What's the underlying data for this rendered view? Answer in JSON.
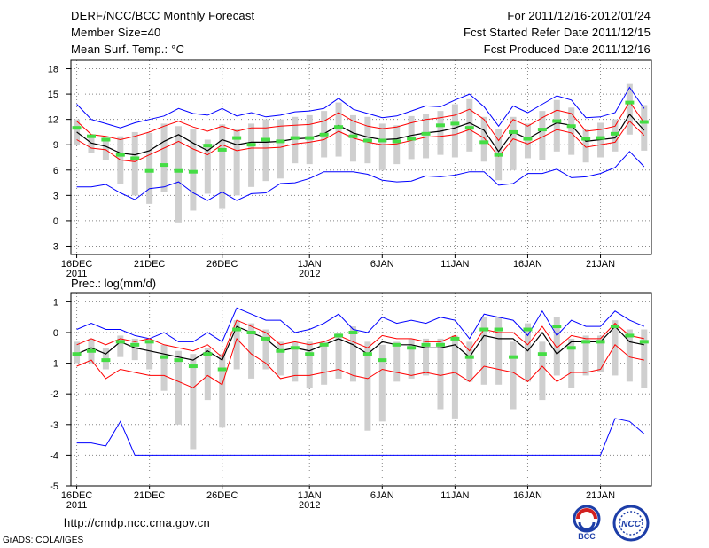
{
  "header": {
    "title": "DERF/NCC/BCC Monthly Forecast",
    "member_size": "Member Size=40",
    "variable1": "Mean Surf. Temp.: °C",
    "period": "For 2011/12/16-2012/01/24",
    "started": "Fcst Started Refer Date 2011/12/15",
    "produced": "Fcst Produced Date 2011/12/16"
  },
  "footer": {
    "url": "http://cmdp.ncc.cma.gov.cn",
    "grads": "GrADS: COLA/IGES",
    "logo1_label": "BCC",
    "logo2_label": "NCC"
  },
  "colors": {
    "max": "#0000ff",
    "min": "#0000ff",
    "upper": "#ff0000",
    "lower": "#ff0000",
    "mean": "#000000",
    "median": "#44dd44",
    "box": "#cfcfcf",
    "grid": "#888888"
  },
  "chart_data": [
    {
      "type": "line",
      "title": "Mean Surf. Temp.: °C",
      "ylim": [
        -4,
        19
      ],
      "yticks": [
        -3,
        0,
        3,
        6,
        9,
        12,
        15,
        18
      ],
      "ytick_labels": [
        "-3",
        "0",
        "3",
        "6",
        "9",
        "12",
        "15",
        "18"
      ],
      "xticks": [
        1,
        6,
        11,
        17,
        22,
        27,
        32,
        37
      ],
      "xtick_labels": [
        "16DEC",
        "21DEC",
        "26DEC",
        "1JAN",
        "6JAN",
        "11JAN",
        "16JAN",
        "21JAN"
      ],
      "xtick_sublabels": {
        "1": "2011",
        "17": "2012"
      },
      "xlim": [
        0.6,
        40.5
      ],
      "days": 40,
      "series": [
        {
          "name": "max",
          "values": [
            13.8,
            12.0,
            11.5,
            11.0,
            11.6,
            12.0,
            12.4,
            13.3,
            12.7,
            12.5,
            13.3,
            12.4,
            12.8,
            12.3,
            12.5,
            12.9,
            13.0,
            13.3,
            14.5,
            13.2,
            12.7,
            12.2,
            12.4,
            13.0,
            13.6,
            13.5,
            14.3,
            15.0,
            13.5,
            11.2,
            13.6,
            12.8,
            13.8,
            14.8,
            14.3,
            12.2,
            12.3,
            12.8,
            15.8,
            13.3
          ]
        },
        {
          "name": "upper",
          "values": [
            11.8,
            10.2,
            10.0,
            9.6,
            10.0,
            10.5,
            11.2,
            11.8,
            11.1,
            10.6,
            11.2,
            10.6,
            11.0,
            11.0,
            11.2,
            11.3,
            11.4,
            11.8,
            12.8,
            11.8,
            11.2,
            10.9,
            11.1,
            11.6,
            12.0,
            12.2,
            12.5,
            13.2,
            12.0,
            9.5,
            12.0,
            11.2,
            12.2,
            13.1,
            12.7,
            10.6,
            10.8,
            11.2,
            14.1,
            11.6
          ]
        },
        {
          "name": "mean",
          "values": [
            10.5,
            9.2,
            8.8,
            8.0,
            7.8,
            8.3,
            9.4,
            10.2,
            9.2,
            8.3,
            9.6,
            9.0,
            9.3,
            9.3,
            9.4,
            9.7,
            9.8,
            10.3,
            11.3,
            10.4,
            9.9,
            9.6,
            9.7,
            10.1,
            10.4,
            10.6,
            11.0,
            11.6,
            10.7,
            8.2,
            10.5,
            9.7,
            10.7,
            11.6,
            11.3,
            9.4,
            9.6,
            9.8,
            12.6,
            10.7
          ]
        },
        {
          "name": "lower",
          "values": [
            9.6,
            8.6,
            8.4,
            7.2,
            7.0,
            7.8,
            8.6,
            9.4,
            8.5,
            7.8,
            9.0,
            8.3,
            8.6,
            8.6,
            8.7,
            9.1,
            9.3,
            9.6,
            10.6,
            9.8,
            9.3,
            9.0,
            9.1,
            9.5,
            9.9,
            10.0,
            10.2,
            10.8,
            9.8,
            7.6,
            9.7,
            9.1,
            9.9,
            10.8,
            10.4,
            8.7,
            9.0,
            9.3,
            11.8,
            10.1
          ]
        },
        {
          "name": "min",
          "values": [
            4.0,
            4.0,
            4.3,
            3.3,
            2.5,
            3.8,
            4.0,
            4.6,
            3.3,
            2.4,
            3.4,
            2.4,
            3.2,
            3.3,
            4.4,
            4.5,
            5.0,
            5.8,
            5.8,
            5.8,
            5.5,
            4.8,
            4.6,
            4.7,
            5.3,
            5.2,
            5.4,
            5.8,
            5.8,
            4.2,
            4.4,
            5.6,
            5.6,
            6.1,
            5.1,
            5.2,
            5.6,
            6.3,
            8.2,
            6.4
          ]
        },
        {
          "name": "median",
          "values": [
            11.0,
            10.0,
            9.6,
            7.8,
            7.4,
            5.9,
            6.6,
            5.9,
            5.8,
            8.9,
            8.4,
            9.8,
            9.0,
            9.6,
            9.4,
            9.8,
            9.8,
            10.2,
            11.1,
            10.0,
            9.5,
            9.5,
            9.4,
            9.7,
            10.3,
            11.3,
            11.5,
            11.0,
            9.3,
            7.8,
            10.5,
            9.7,
            10.8,
            11.8,
            11.2,
            9.7,
            9.8,
            10.3,
            14.0,
            11.7
          ]
        },
        {
          "name": "box_top",
          "values": [
            12.0,
            10.0,
            10.0,
            10.0,
            10.5,
            10.4,
            11.5,
            11.2,
            10.8,
            9.6,
            11.4,
            10.8,
            11.5,
            12.0,
            12.0,
            12.3,
            12.5,
            13.0,
            14.0,
            12.5,
            12.3,
            11.5,
            11.3,
            12.4,
            12.6,
            13.0,
            13.8,
            14.4,
            12.3,
            10.9,
            12.3,
            11.5,
            13.0,
            14.3,
            13.4,
            10.8,
            11.6,
            12.0,
            16.2,
            13.7
          ]
        },
        {
          "name": "box_bottom",
          "values": [
            9.0,
            8.0,
            7.2,
            4.3,
            3.0,
            2.0,
            3.4,
            -0.2,
            1.2,
            3.2,
            1.4,
            3.0,
            4.0,
            4.7,
            5.0,
            6.8,
            6.7,
            7.5,
            7.6,
            7.0,
            6.8,
            6.0,
            6.7,
            7.3,
            7.4,
            7.8,
            7.5,
            8.2,
            7.0,
            4.8,
            6.0,
            7.4,
            7.2,
            8.2,
            7.8,
            6.9,
            7.5,
            8.2,
            10.2,
            8.3
          ]
        }
      ]
    },
    {
      "type": "line",
      "title": "Prec.: log(mm/d)",
      "ylim": [
        -5,
        1.3
      ],
      "yticks": [
        -5,
        -4,
        -3,
        -2,
        -1,
        0,
        1
      ],
      "ytick_labels": [
        "-5",
        "-4",
        "-3",
        "-2",
        "-1",
        "0",
        "1"
      ],
      "xticks": [
        1,
        6,
        11,
        17,
        22,
        27,
        32,
        37
      ],
      "xtick_labels": [
        "16DEC",
        "21DEC",
        "26DEC",
        "1JAN",
        "6JAN",
        "11JAN",
        "16JAN",
        "21JAN"
      ],
      "xtick_sublabels": {
        "1": "2011",
        "17": "2012"
      },
      "xlim": [
        0.6,
        40.5
      ],
      "days": 40,
      "series": [
        {
          "name": "max",
          "values": [
            0.1,
            0.3,
            0.1,
            0.1,
            -0.1,
            -0.2,
            0.0,
            -0.3,
            -0.3,
            0.0,
            -0.3,
            0.8,
            0.6,
            0.4,
            0.4,
            0.0,
            0.1,
            0.3,
            0.6,
            0.1,
            0.0,
            0.5,
            0.3,
            0.4,
            0.3,
            0.5,
            0.4,
            -0.2,
            0.6,
            0.5,
            0.4,
            -0.1,
            0.7,
            -0.1,
            0.4,
            0.2,
            0.2,
            0.7,
            0.4,
            0.2
          ]
        },
        {
          "name": "upper",
          "values": [
            -0.4,
            -0.2,
            -0.4,
            -0.2,
            -0.3,
            -0.2,
            -0.4,
            -0.5,
            -0.6,
            -0.4,
            -0.8,
            0.4,
            0.2,
            0.0,
            -0.4,
            -0.3,
            -0.4,
            -0.3,
            -0.1,
            -0.3,
            -0.5,
            -0.1,
            -0.2,
            -0.2,
            -0.3,
            -0.3,
            -0.1,
            -0.6,
            0.1,
            0.0,
            0.0,
            -0.4,
            0.2,
            -0.5,
            -0.1,
            -0.2,
            -0.2,
            0.3,
            -0.1,
            -0.2
          ]
        },
        {
          "name": "mean",
          "values": [
            -0.7,
            -0.5,
            -0.7,
            -0.3,
            -0.5,
            -0.6,
            -0.7,
            -0.8,
            -0.9,
            -0.6,
            -0.9,
            0.2,
            0.0,
            -0.2,
            -0.6,
            -0.5,
            -0.6,
            -0.4,
            -0.2,
            -0.4,
            -0.7,
            -0.3,
            -0.4,
            -0.4,
            -0.5,
            -0.5,
            -0.4,
            -0.8,
            -0.1,
            -0.2,
            -0.2,
            -0.6,
            0.0,
            -0.7,
            -0.3,
            -0.3,
            -0.3,
            0.2,
            -0.3,
            -0.4
          ]
        },
        {
          "name": "lower",
          "values": [
            -1.1,
            -0.9,
            -1.5,
            -1.2,
            -1.3,
            -1.4,
            -1.4,
            -1.6,
            -1.8,
            -1.4,
            -1.7,
            -0.2,
            -0.7,
            -1.0,
            -1.5,
            -1.4,
            -1.4,
            -1.3,
            -1.2,
            -1.4,
            -1.5,
            -1.2,
            -1.3,
            -1.4,
            -1.3,
            -1.4,
            -1.3,
            -1.6,
            -1.1,
            -1.2,
            -1.3,
            -1.6,
            -1.1,
            -1.6,
            -1.3,
            -1.3,
            -1.2,
            -0.4,
            -0.8,
            -0.9
          ]
        },
        {
          "name": "min",
          "values": [
            -3.6,
            -3.6,
            -3.7,
            -2.9,
            -4.0,
            -4.0,
            -4.0,
            -4.0,
            -4.0,
            -4.0,
            -4.0,
            -4.0,
            -4.0,
            -4.0,
            -4.0,
            -4.0,
            -4.0,
            -4.0,
            -4.0,
            -4.0,
            -4.0,
            -4.0,
            -4.0,
            -4.0,
            -4.0,
            -4.0,
            -4.0,
            -4.0,
            -4.0,
            -4.0,
            -4.0,
            -4.0,
            -4.0,
            -4.0,
            -4.0,
            -4.0,
            -4.0,
            -2.8,
            -2.9,
            -3.3
          ]
        },
        {
          "name": "median",
          "values": [
            -0.7,
            -0.6,
            -0.9,
            -0.3,
            -0.4,
            -0.3,
            -0.8,
            -0.9,
            -1.1,
            -0.7,
            -1.2,
            0.1,
            0.0,
            -0.2,
            -0.6,
            -0.5,
            -0.7,
            -0.4,
            -0.1,
            0.0,
            -0.7,
            -0.9,
            -0.4,
            -0.5,
            -0.4,
            -0.4,
            -0.2,
            -0.8,
            0.1,
            0.1,
            -0.8,
            0.1,
            -0.7,
            0.2,
            -0.5,
            -0.3,
            -0.3,
            0.2,
            -0.1,
            -0.3
          ]
        },
        {
          "name": "box_top",
          "values": [
            -0.3,
            -0.2,
            -0.5,
            -0.1,
            -0.2,
            -0.2,
            -0.4,
            -0.6,
            -0.7,
            -0.5,
            -0.7,
            0.4,
            0.3,
            0.1,
            -0.3,
            -0.3,
            -0.3,
            -0.3,
            0.0,
            0.2,
            -0.3,
            -0.4,
            -0.3,
            -0.2,
            -0.2,
            -0.2,
            -0.1,
            -0.3,
            0.5,
            0.5,
            -0.3,
            0.3,
            -0.3,
            0.5,
            -0.2,
            -0.1,
            -0.1,
            0.4,
            0.1,
            0.1
          ]
        },
        {
          "name": "box_bottom",
          "values": [
            -1.0,
            -1.0,
            -1.2,
            -0.8,
            -0.9,
            -1.2,
            -1.9,
            -3.0,
            -3.8,
            -2.2,
            -3.1,
            -1.2,
            -1.5,
            -1.2,
            -1.4,
            -1.6,
            -1.8,
            -1.7,
            -1.5,
            -1.6,
            -3.2,
            -2.9,
            -1.6,
            -1.5,
            -1.4,
            -2.5,
            -2.8,
            -1.6,
            -1.7,
            -1.7,
            -2.5,
            -1.6,
            -2.2,
            -1.4,
            -1.8,
            -1.4,
            -1.3,
            -1.4,
            -1.6,
            -1.8
          ]
        }
      ]
    }
  ]
}
